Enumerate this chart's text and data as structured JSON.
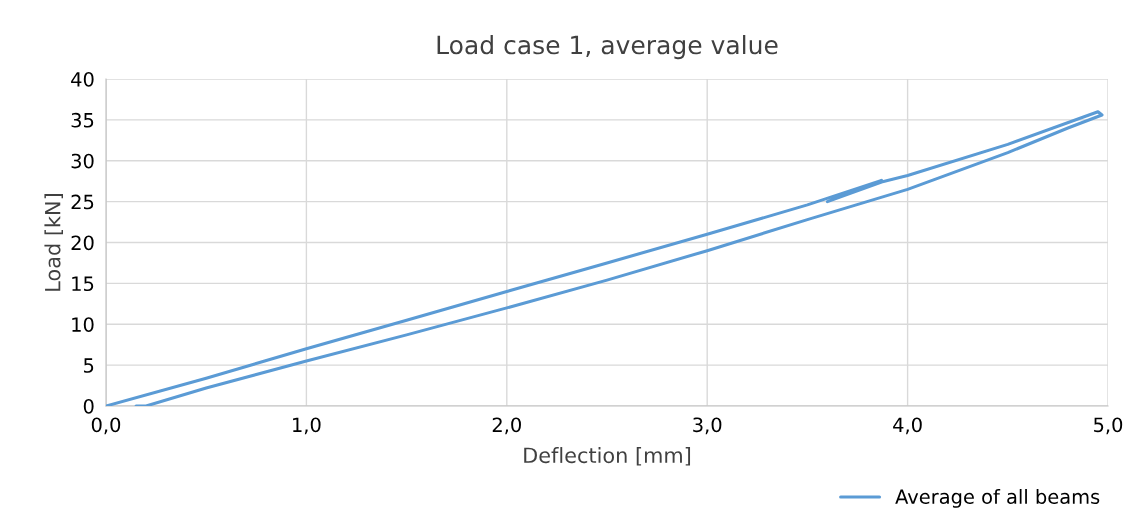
{
  "chart_data": {
    "type": "line",
    "title": "Load case 1, average value",
    "xlabel": "Deflection [mm]",
    "ylabel": "Load [kN]",
    "x": [
      0,
      0.5,
      1.0,
      1.5,
      2.0,
      2.5,
      3.0,
      3.5,
      3.87,
      3.6,
      3.87,
      4.0,
      4.5,
      4.95,
      4.97,
      4.8,
      4.5,
      4.0,
      3.5,
      3.0,
      2.5,
      2.0,
      1.5,
      1.0,
      0.5,
      0.2,
      0.15
    ],
    "series": [
      {
        "name": "Average of all beams",
        "color": "#5b9bd5",
        "values": [
          0,
          3.4,
          7.0,
          10.5,
          14.0,
          17.5,
          21.0,
          24.6,
          27.6,
          25.0,
          27.4,
          28.2,
          32.0,
          36.0,
          35.6,
          34.0,
          31.0,
          26.5,
          22.8,
          19.0,
          15.4,
          12.0,
          8.7,
          5.5,
          2.2,
          0,
          0
        ]
      }
    ],
    "xlim": [
      0,
      5
    ],
    "xticks": [
      {
        "value": 0,
        "label": "0,0"
      },
      {
        "value": 1,
        "label": "1,0"
      },
      {
        "value": 2,
        "label": "2,0"
      },
      {
        "value": 3,
        "label": "3,0"
      },
      {
        "value": 4,
        "label": "4,0"
      },
      {
        "value": 5,
        "label": "5,0"
      }
    ],
    "ylim": [
      0,
      40
    ],
    "yticks": [
      0,
      5,
      10,
      15,
      20,
      25,
      30,
      35,
      40
    ],
    "grid": true,
    "legend": "bottom right",
    "marker": "none",
    "line_style": "solid"
  }
}
